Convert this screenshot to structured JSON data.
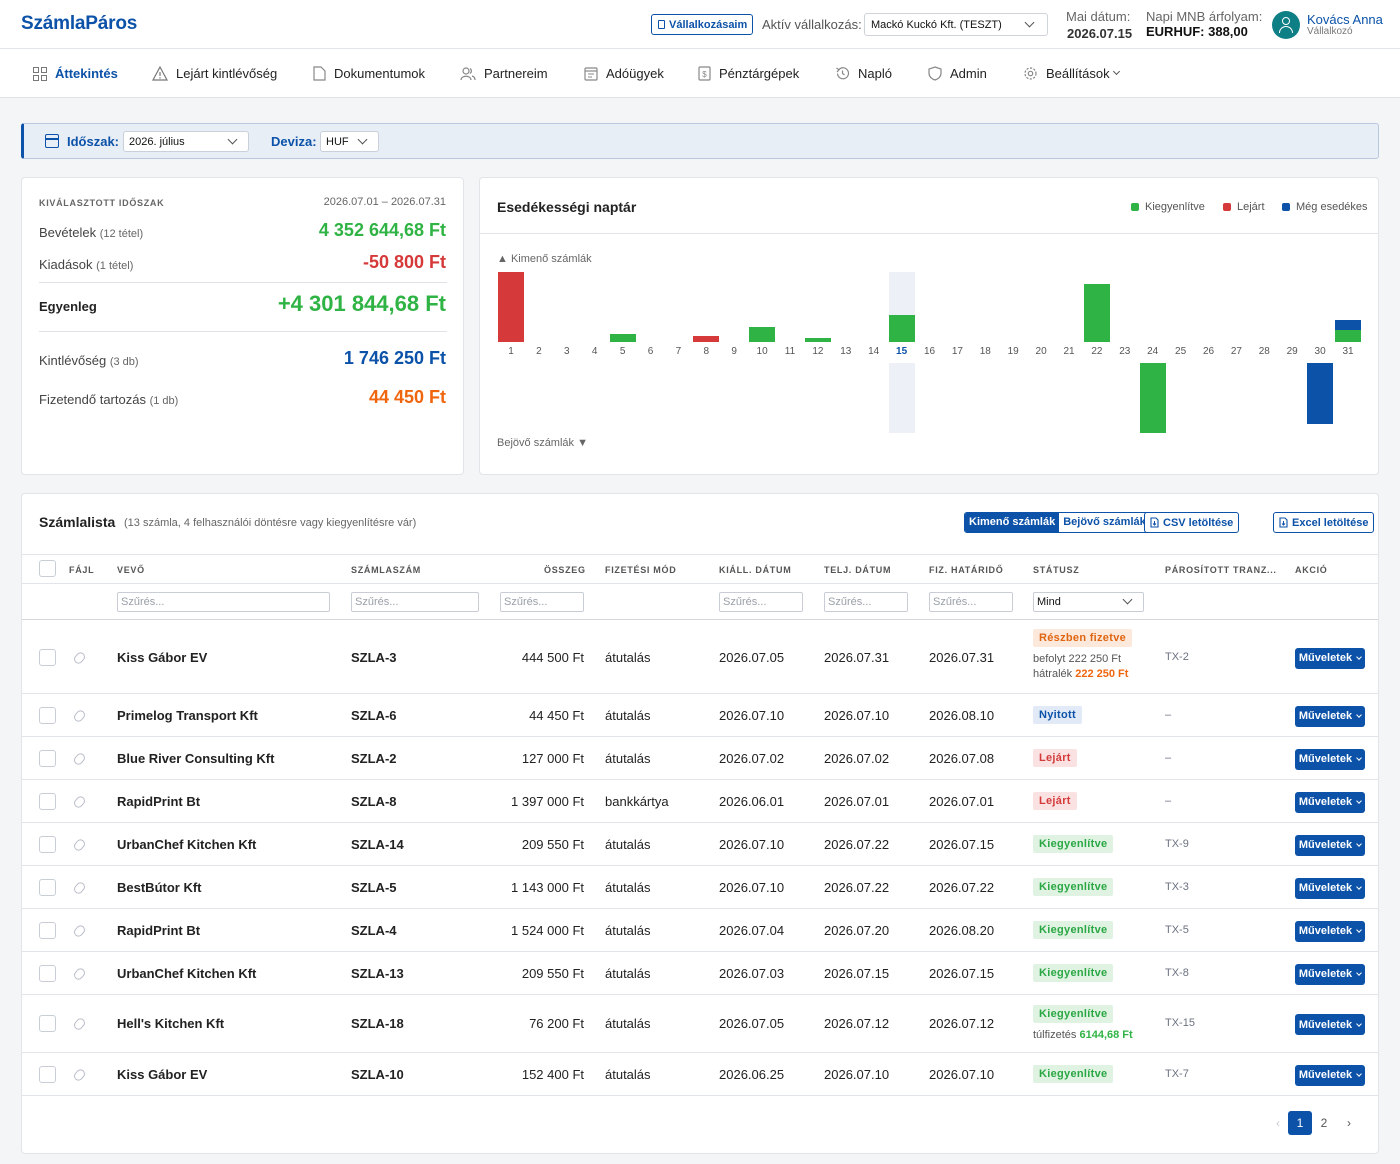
{
  "app": {
    "title": "SzámlaPáros"
  },
  "header": {
    "businesses_button": "Vállalkozásaim",
    "active_business_label": "Aktív vállalkozás:",
    "active_business_value": "Mackó Kuckó Kft. (TESZT)",
    "date_label": "Mai dátum:",
    "date_value": "2026.07.15",
    "rate_label": "Napi MNB árfolyam:",
    "rate_value": "EURHUF: 388,00",
    "user_name": "Kovács Anna",
    "user_role": "Vállalkozó"
  },
  "nav": {
    "items": [
      {
        "label": "Áttekintés",
        "icon": "dashboard-icon"
      },
      {
        "label": "Lejárt kintlévőség",
        "icon": "warning-icon"
      },
      {
        "label": "Dokumentumok",
        "icon": "document-icon"
      },
      {
        "label": "Partnereim",
        "icon": "people-icon"
      },
      {
        "label": "Adóügyek",
        "icon": "tax-icon"
      },
      {
        "label": "Pénztárgépek",
        "icon": "register-icon"
      },
      {
        "label": "Napló",
        "icon": "history-icon"
      },
      {
        "label": "Admin",
        "icon": "shield-icon"
      },
      {
        "label": "Beállítások",
        "icon": "gear-icon"
      }
    ]
  },
  "filters": {
    "period_label": "Időszak:",
    "period_value": "2026. július",
    "currency_label": "Deviza:",
    "currency_value": "HUF"
  },
  "summary": {
    "heading": "KIVÁLASZTOTT IDŐSZAK",
    "range": "2026.07.01 – 2026.07.31",
    "income_label": "Bevételek",
    "income_count": "(12 tétel)",
    "income_value": "4 352 644,68 Ft",
    "expense_label": "Kiadások",
    "expense_count": "(1 tétel)",
    "expense_value": "-50 800 Ft",
    "balance_label": "Egyenleg",
    "balance_value": "+4 301 844,68 Ft",
    "receivable_label": "Kintlévőség",
    "receivable_count": "(3 db)",
    "receivable_value": "1 746 250 Ft",
    "payable_label": "Fizetendő tartozás",
    "payable_count": "(1 db)",
    "payable_value": "44 450 Ft"
  },
  "calendar": {
    "title": "Esedékességi naptár",
    "legend_paid": "Kiegyenlítve",
    "legend_late": "Lejárt",
    "legend_due": "Még esedékes",
    "outgoing_label": "▲ Kimenő számlák",
    "incoming_label": "Bejövő számlák ▼",
    "today": 15,
    "colors": {
      "paid": "#2fb344",
      "late": "#d63939",
      "due": "#0b52a8"
    },
    "outgoing": [
      {
        "day": 1,
        "segments": [
          {
            "status": "late",
            "value": 1
          }
        ]
      },
      {
        "day": 5,
        "segments": [
          {
            "status": "paid",
            "value": 0.11
          }
        ]
      },
      {
        "day": 8,
        "segments": [
          {
            "status": "late",
            "value": 0.09
          }
        ]
      },
      {
        "day": 10,
        "segments": [
          {
            "status": "paid",
            "value": 0.21
          }
        ]
      },
      {
        "day": 12,
        "segments": [
          {
            "status": "paid",
            "value": 0.06
          }
        ]
      },
      {
        "day": 15,
        "segments": [
          {
            "status": "paid",
            "value": 0.39
          }
        ]
      },
      {
        "day": 22,
        "segments": [
          {
            "status": "paid",
            "value": 0.83
          }
        ]
      },
      {
        "day": 31,
        "segments": [
          {
            "status": "paid",
            "value": 0.17
          },
          {
            "status": "due",
            "value": 0.14
          }
        ]
      }
    ],
    "incoming": [
      {
        "day": 24,
        "segments": [
          {
            "status": "paid",
            "value": 1
          }
        ]
      },
      {
        "day": 30,
        "segments": [
          {
            "status": "due",
            "value": 0.87
          }
        ]
      }
    ]
  },
  "invoices": {
    "title": "Számlalista",
    "subtitle": "(13 számla, 4 felhasználói döntésre vagy kiegyenlítésre vár)",
    "toggle_outgoing": "Kimenő számlák",
    "toggle_incoming": "Bejövő számlák",
    "csv_button": "CSV letöltése",
    "excel_button": "Excel letöltése",
    "columns": [
      "FÁJL",
      "VEVŐ",
      "SZÁMLASZÁM",
      "ÖSSZEG",
      "FIZETÉSI MÓD",
      "KIÁLL. DÁTUM",
      "TELJ. DÁTUM",
      "FIZ. HATÁRIDŐ",
      "STÁTUSZ",
      "PÁROSÍTOTT TRANZ...",
      "AKCIÓ"
    ],
    "filter_placeholder": "Szűrés...",
    "status_filter": "Mind",
    "action_label": "Műveletek",
    "rows": [
      {
        "buyer": "Kiss Gábor EV",
        "number": "SZLA-3",
        "amount": "444 500 Ft",
        "method": "átutalás",
        "issued": "2026.07.05",
        "performed": "2026.07.31",
        "due": "2026.07.31",
        "status": "Részben fizetve",
        "status_type": "part",
        "note1": "befolyt 222 250 Ft",
        "note2_label": "hátralék",
        "note2_value": "222 250 Ft",
        "tx": "TX-2"
      },
      {
        "buyer": "Primelog Transport Kft",
        "number": "SZLA-6",
        "amount": "44 450 Ft",
        "method": "átutalás",
        "issued": "2026.07.10",
        "performed": "2026.07.10",
        "due": "2026.08.10",
        "status": "Nyitott",
        "status_type": "open",
        "tx": "–"
      },
      {
        "buyer": "Blue River Consulting Kft",
        "number": "SZLA-2",
        "amount": "127 000 Ft",
        "method": "átutalás",
        "issued": "2026.07.02",
        "performed": "2026.07.02",
        "due": "2026.07.08",
        "status": "Lejárt",
        "status_type": "late",
        "tx": "–"
      },
      {
        "buyer": "RapidPrint Bt",
        "number": "SZLA-8",
        "amount": "1 397 000 Ft",
        "method": "bankkártya",
        "issued": "2026.06.01",
        "performed": "2026.07.01",
        "due": "2026.07.01",
        "status": "Lejárt",
        "status_type": "late",
        "tx": "–"
      },
      {
        "buyer": "UrbanChef Kitchen Kft",
        "number": "SZLA-14",
        "amount": "209 550 Ft",
        "method": "átutalás",
        "issued": "2026.07.10",
        "performed": "2026.07.22",
        "due": "2026.07.15",
        "status": "Kiegyenlítve",
        "status_type": "paid",
        "tx": "TX-9"
      },
      {
        "buyer": "BestBútor Kft",
        "number": "SZLA-5",
        "amount": "1 143 000 Ft",
        "method": "átutalás",
        "issued": "2026.07.10",
        "performed": "2026.07.22",
        "due": "2026.07.22",
        "status": "Kiegyenlítve",
        "status_type": "paid",
        "tx": "TX-3"
      },
      {
        "buyer": "RapidPrint Bt",
        "number": "SZLA-4",
        "amount": "1 524 000 Ft",
        "method": "átutalás",
        "issued": "2026.07.04",
        "performed": "2026.07.20",
        "due": "2026.08.20",
        "status": "Kiegyenlítve",
        "status_type": "paid",
        "tx": "TX-5"
      },
      {
        "buyer": "UrbanChef Kitchen Kft",
        "number": "SZLA-13",
        "amount": "209 550 Ft",
        "method": "átutalás",
        "issued": "2026.07.03",
        "performed": "2026.07.15",
        "due": "2026.07.15",
        "status": "Kiegyenlítve",
        "status_type": "paid",
        "tx": "TX-8"
      },
      {
        "buyer": "Hell's Kitchen Kft",
        "number": "SZLA-18",
        "amount": "76 200 Ft",
        "method": "átutalás",
        "issued": "2026.07.05",
        "performed": "2026.07.12",
        "due": "2026.07.12",
        "status": "Kiegyenlítve",
        "status_type": "paid",
        "note2_label": "túlfizetés",
        "note2_value": "6144,68 Ft",
        "tx": "TX-15"
      },
      {
        "buyer": "Kiss Gábor EV",
        "number": "SZLA-10",
        "amount": "152 400 Ft",
        "method": "átutalás",
        "issued": "2026.06.25",
        "performed": "2026.07.10",
        "due": "2026.07.10",
        "status": "Kiegyenlítve",
        "status_type": "paid",
        "tx": "TX-7"
      }
    ]
  },
  "pagination": {
    "prev": "‹",
    "pages": [
      "1",
      "2"
    ],
    "next": "›"
  }
}
